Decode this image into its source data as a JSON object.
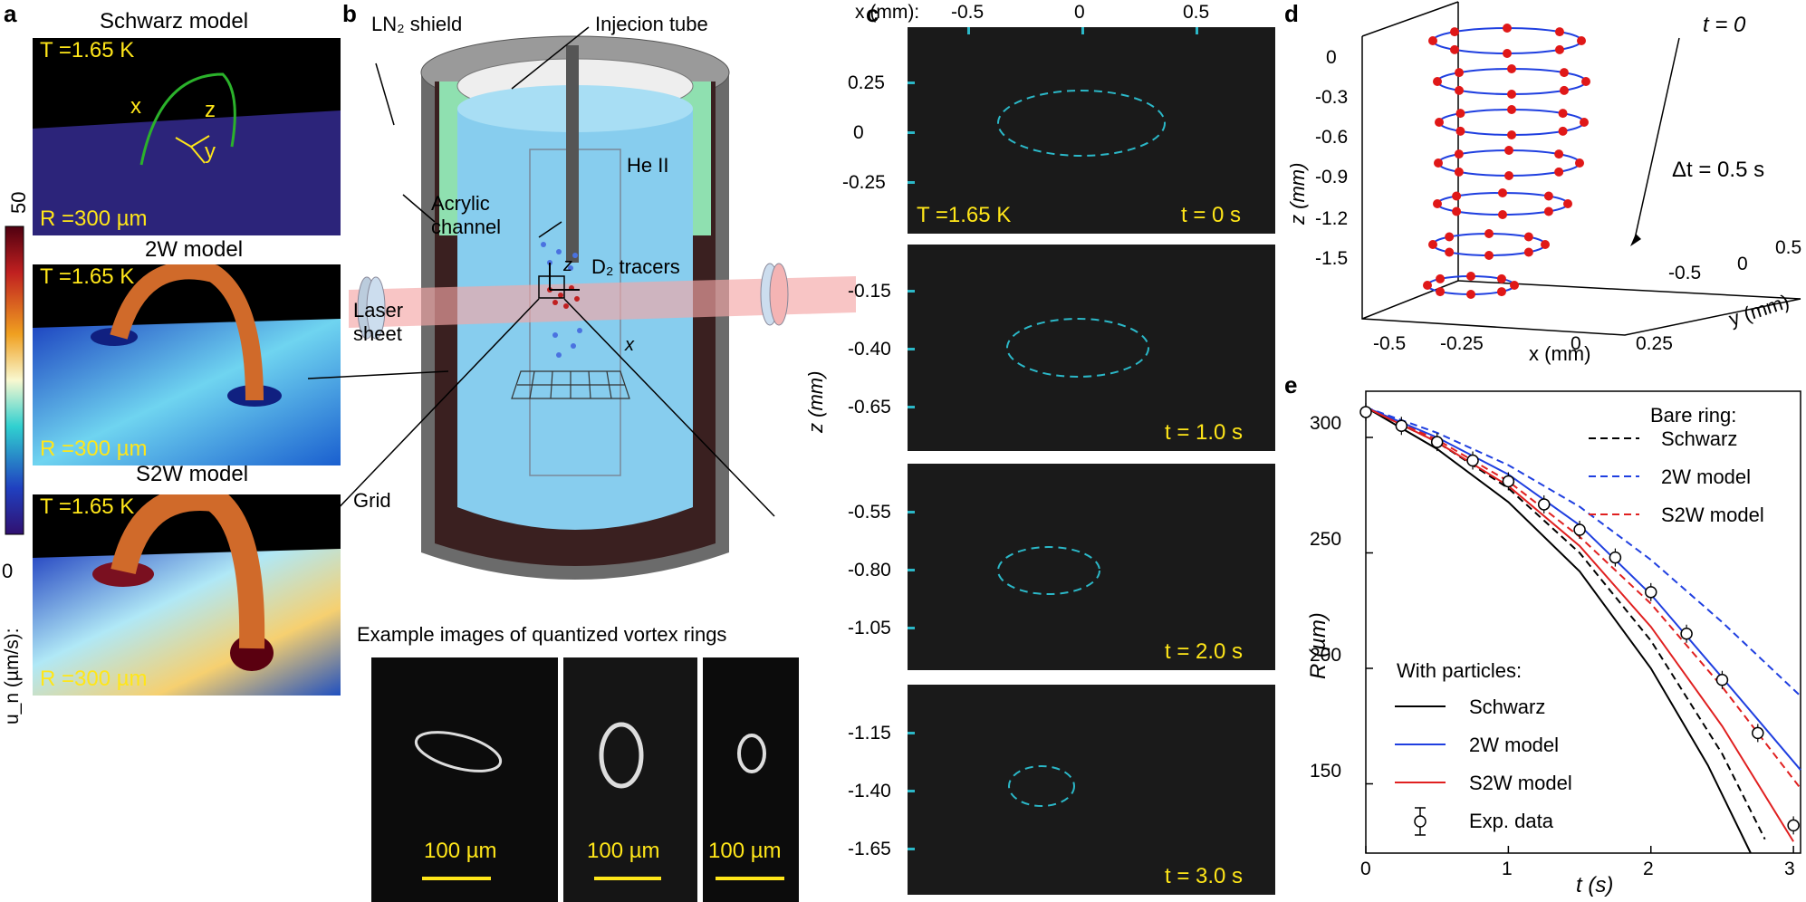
{
  "panel_labels": {
    "a": "a",
    "b": "b",
    "c": "c",
    "d": "d",
    "e": "e"
  },
  "panel_a": {
    "titles": [
      "Schwarz model",
      "2W model",
      "S2W model"
    ],
    "temperature": "T =1.65 K",
    "radius": "R =300 µm",
    "axes": {
      "x": "x",
      "y": "y",
      "z": "z"
    },
    "colorbar": {
      "max": "50",
      "min": "0",
      "label": "u_n (µm/s):"
    }
  },
  "panel_b": {
    "labels": {
      "shield": "LN₂ shield",
      "tube": "Injecion tube",
      "he": "He II",
      "channel1": "Acrylic",
      "channel2": "channel",
      "tracers": "D₂ tracers",
      "laser1": "Laser",
      "laser2": "sheet",
      "grid": "Grid",
      "z": "z",
      "x": "x"
    },
    "example_title": "Example images of quantized vortex rings",
    "scale": "100 µm"
  },
  "panel_c": {
    "x_axis_prefix": "x (mm):",
    "x_ticks": [
      "-0.5",
      "0",
      "0.5"
    ],
    "z_label": "z (mm)",
    "temperature": "T =1.65 K",
    "frames": [
      {
        "ticks": [
          "0.25",
          "0",
          "-0.25"
        ],
        "time": "t = 0 s"
      },
      {
        "ticks": [
          "-0.15",
          "-0.40",
          "-0.65"
        ],
        "time": "t = 1.0 s"
      },
      {
        "ticks": [
          "-0.55",
          "-0.80",
          "-1.05"
        ],
        "time": "t = 2.0 s"
      },
      {
        "ticks": [
          "-1.15",
          "-1.40",
          "-1.65"
        ],
        "time": "t = 3.0 s"
      }
    ]
  },
  "panel_d": {
    "z_ticks": [
      "0",
      "-0.3",
      "-0.6",
      "-0.9",
      "-1.2",
      "-1.5"
    ],
    "x_ticks": [
      "-0.5",
      "-0.25",
      "0",
      "0.25"
    ],
    "y_ticks": [
      "-0.5",
      "0",
      "0.5"
    ],
    "zlabel": "z (mm)",
    "xlabel": "x (mm)",
    "ylabel": "y (mm)",
    "t0": "t = 0",
    "dt": "Δt = 0.5 s"
  },
  "chart_data": {
    "type": "line",
    "xlabel": "t (s)",
    "ylabel": "R (µm)",
    "xlim": [
      0,
      3.05
    ],
    "ylim": [
      120,
      320
    ],
    "x_ticks": [
      "0",
      "1",
      "2",
      "3"
    ],
    "y_ticks": [
      "150",
      "200",
      "250",
      "300"
    ],
    "legend_bare_title": "Bare ring:",
    "legend_particles_title": "With particles:",
    "series": [
      {
        "name": "Schwarz",
        "group": "bare",
        "style": "dashed",
        "color": "#000000",
        "x": [
          0,
          0.5,
          1,
          1.5,
          2,
          2.5,
          2.8
        ],
        "values": [
          313,
          298,
          278,
          250,
          212,
          163,
          126
        ]
      },
      {
        "name": "2W model",
        "group": "bare",
        "style": "dashed",
        "color": "#1f3fe0",
        "x": [
          0,
          0.5,
          1,
          1.5,
          2,
          2.5,
          3.05
        ],
        "values": [
          313,
          302,
          288,
          270,
          247,
          220,
          188
        ]
      },
      {
        "name": "S2W model",
        "group": "bare",
        "style": "dashed",
        "color": "#e02020",
        "x": [
          0,
          0.5,
          1,
          1.5,
          2,
          2.5,
          3.05
        ],
        "values": [
          313,
          299,
          281,
          257,
          228,
          192,
          148
        ]
      },
      {
        "name": "Schwarz",
        "group": "particles",
        "style": "solid",
        "color": "#000000",
        "x": [
          0,
          0.5,
          1,
          1.5,
          2,
          2.4,
          2.7
        ],
        "values": [
          313,
          295,
          272,
          242,
          200,
          158,
          120
        ]
      },
      {
        "name": "2W model",
        "group": "particles",
        "style": "solid",
        "color": "#1f3fe0",
        "x": [
          0,
          0.5,
          1,
          1.5,
          2,
          2.5,
          3.05
        ],
        "values": [
          313,
          300,
          284,
          262,
          232,
          196,
          156
        ]
      },
      {
        "name": "S2W model",
        "group": "particles",
        "style": "solid",
        "color": "#e02020",
        "x": [
          0,
          0.5,
          1,
          1.5,
          2,
          2.5,
          3.0
        ],
        "values": [
          313,
          298,
          279,
          253,
          218,
          175,
          125
        ]
      },
      {
        "name": "Exp. data",
        "group": "data",
        "style": "markers",
        "color": "#000000",
        "x": [
          0,
          0.25,
          0.5,
          0.75,
          1,
          1.25,
          1.5,
          1.75,
          2,
          2.25,
          2.5,
          2.75,
          3.0
        ],
        "values": [
          311,
          305,
          298,
          290,
          281,
          271,
          260,
          248,
          233,
          215,
          195,
          172,
          132
        ]
      }
    ]
  }
}
